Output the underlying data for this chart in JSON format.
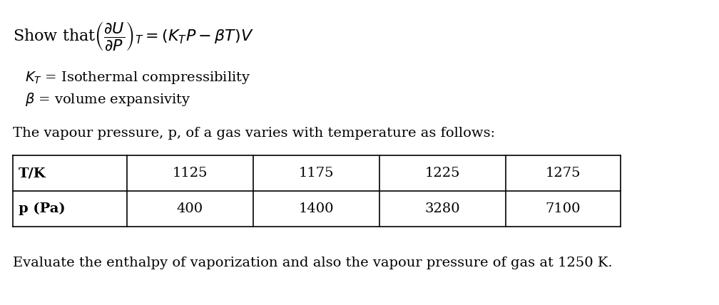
{
  "background_color": "#ffffff",
  "figsize": [
    10.08,
    4.28
  ],
  "dpi": 100,
  "table_headers": [
    "T/K",
    "1125",
    "1175",
    "1225",
    "1275"
  ],
  "table_row2": [
    "p (Pa)",
    "400",
    "1400",
    "3280",
    "7100"
  ],
  "line4": "The vapour pressure, p, of a gas varies with temperature as follows:",
  "line5": "Evaluate the enthalpy of vaporization and also the vapour pressure of gas at 1250 K.",
  "font_size_main": 14,
  "font_size_table": 14
}
